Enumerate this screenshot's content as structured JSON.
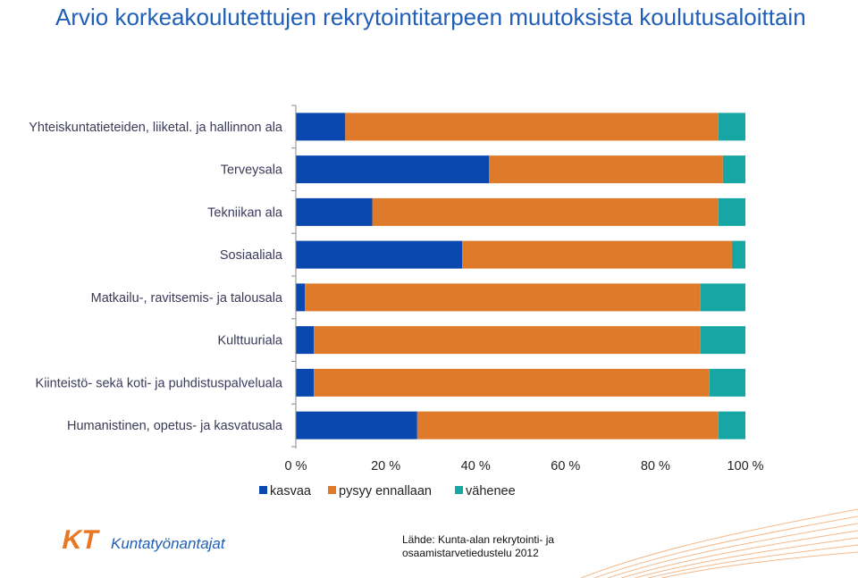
{
  "title": "Arvio korkeakoulutettujen rekrytointitarpeen muutoksista koulutusaloittain",
  "source": "Lähde: Kunta-alan rekrytointi- ja osaamistarvetiedustelu 2012",
  "logo": {
    "mark": "KT",
    "text": "Kuntatyönantajat"
  },
  "colors": {
    "kasvaa": "#0a47ae",
    "pysyy": "#e07a2b",
    "vahenee": "#16a7a4",
    "brand": "#1f5fb8",
    "logo_orange": "#e87722"
  },
  "chart_data": {
    "type": "bar",
    "orientation": "horizontal",
    "stacked": "percent",
    "categories": [
      "Yhteiskuntatieteiden, liiketal. ja hallinnon ala",
      "Terveysala",
      "Tekniikan ala",
      "Sosiaaliala",
      "Matkailu-, ravitsemis- ja talousala",
      "Kulttuuriala",
      "Kiinteistö- sekä koti- ja puhdistuspalveluala",
      "Humanistinen, opetus- ja kasvatusala"
    ],
    "series": [
      {
        "name": "kasvaa",
        "values": [
          11,
          43,
          17,
          37,
          2,
          4,
          4,
          27
        ]
      },
      {
        "name": "pysyy ennallaan",
        "values": [
          83,
          52,
          77,
          60,
          88,
          86,
          88,
          67
        ]
      },
      {
        "name": "vähenee",
        "values": [
          6,
          5,
          6,
          3,
          10,
          10,
          8,
          6
        ]
      }
    ],
    "xticks": [
      "0 %",
      "20 %",
      "40 %",
      "60 %",
      "80 %",
      "100 %"
    ],
    "xlim": [
      0,
      100
    ],
    "legend": "bottom",
    "grid": false
  }
}
